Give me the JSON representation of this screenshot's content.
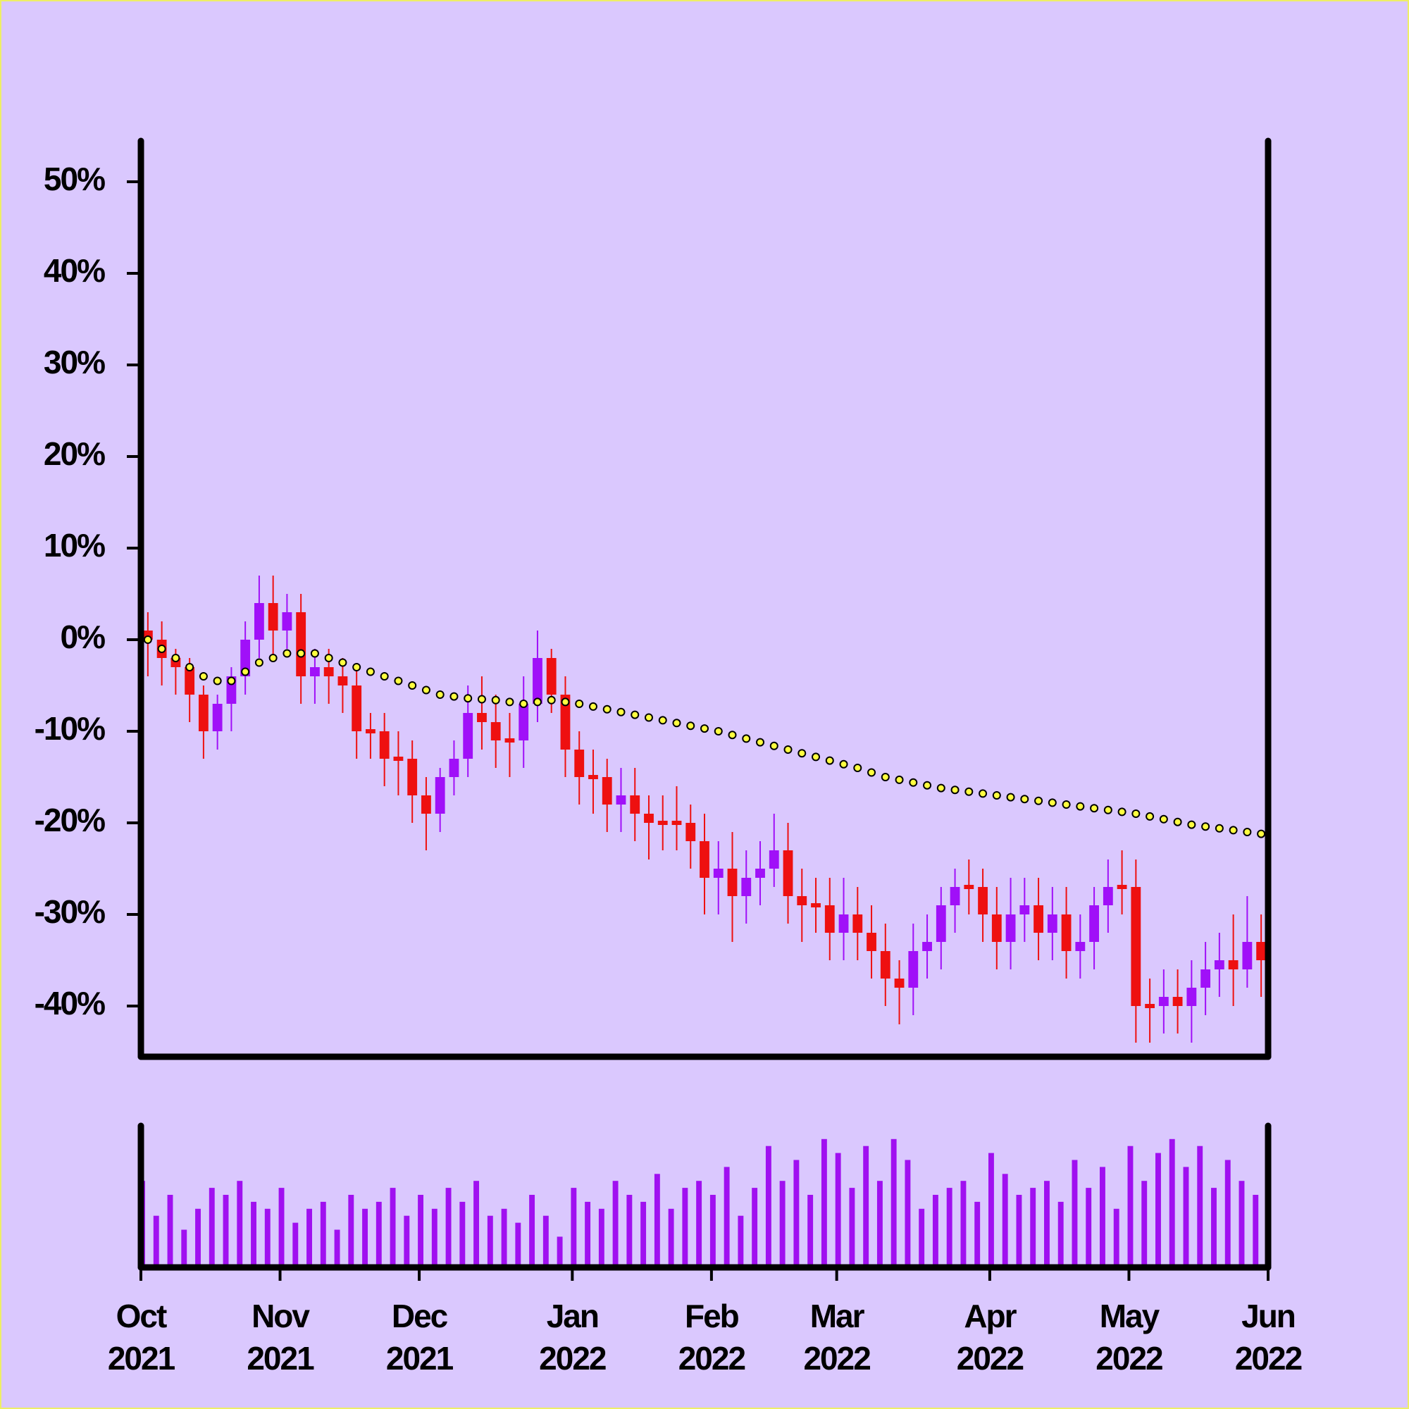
{
  "chart_data": {
    "type": "candlestick",
    "categories": [
      "Oct 2021",
      null,
      null,
      null,
      null,
      null,
      null,
      null,
      null,
      null,
      "Nov 2021",
      null,
      null,
      null,
      null,
      null,
      null,
      null,
      null,
      null,
      "Dec 2021",
      null,
      null,
      null,
      null,
      null,
      null,
      null,
      null,
      null,
      null,
      "Jan 2022",
      null,
      null,
      null,
      null,
      null,
      null,
      null,
      null,
      null,
      "Feb 2022",
      null,
      null,
      null,
      null,
      null,
      null,
      null,
      null,
      "Mar 2022",
      null,
      null,
      null,
      null,
      null,
      null,
      null,
      null,
      null,
      null,
      "Apr 2022",
      null,
      null,
      null,
      null,
      null,
      null,
      null,
      null,
      null,
      "May 2022",
      null,
      null,
      null,
      null,
      null,
      null,
      null,
      null,
      null,
      "Jun 2022"
    ],
    "open": [
      1,
      0,
      -2,
      -3,
      -6,
      -10,
      -7,
      -4,
      0,
      4,
      1,
      3,
      -4,
      -3,
      -4,
      -5,
      -10,
      -10,
      -13,
      -13,
      -17,
      -19,
      -15,
      -13,
      -8,
      -9,
      -11,
      -11,
      -7,
      -2,
      -6,
      -12,
      -15,
      -15,
      -18,
      -17,
      -19,
      -20,
      -20,
      -20,
      -22,
      -26,
      -25,
      -28,
      -26,
      -25,
      -23,
      -28,
      -29,
      -29,
      -32,
      -30,
      -32,
      -34,
      -37,
      -38,
      -34,
      -33,
      -29,
      -27,
      -27,
      -30,
      -33,
      -30,
      -29,
      -32,
      -30,
      -34,
      -33,
      -29,
      -27,
      -27,
      -40,
      -40,
      -39,
      -40,
      -38,
      -36,
      -35,
      -36,
      -33,
      null
    ],
    "high": [
      3,
      2,
      -1,
      -2,
      -5,
      -6,
      -3,
      2,
      7,
      7,
      5,
      5,
      -1,
      -1,
      -2,
      -3,
      -8,
      -8,
      -10,
      -11,
      -15,
      -14,
      -11,
      -5,
      -4,
      -6,
      -8,
      -4,
      1,
      -1,
      -4,
      -10,
      -12,
      -13,
      -14,
      -14,
      -17,
      -17,
      -16,
      -18,
      -19,
      -22,
      -21,
      -23,
      -22,
      -19,
      -20,
      -25,
      -26,
      -26,
      -26,
      -27,
      -29,
      -31,
      -35,
      -31,
      -30,
      -27,
      -25,
      -24,
      -25,
      -27,
      -26,
      -26,
      -26,
      -27,
      -27,
      -30,
      -27,
      -24,
      -23,
      -24,
      -37,
      -36,
      -36,
      -35,
      -33,
      -32,
      -30,
      -28,
      -30,
      null
    ],
    "low": [
      -4,
      -5,
      -6,
      -9,
      -13,
      -12,
      -10,
      -6,
      -2,
      -2,
      -1,
      -7,
      -7,
      -7,
      -8,
      -13,
      -13,
      -16,
      -17,
      -20,
      -23,
      -21,
      -17,
      -15,
      -12,
      -14,
      -15,
      -14,
      -9,
      -8,
      -15,
      -18,
      -19,
      -21,
      -21,
      -22,
      -24,
      -23,
      -23,
      -25,
      -30,
      -30,
      -33,
      -31,
      -29,
      -27,
      -31,
      -33,
      -32,
      -35,
      -35,
      -35,
      -37,
      -40,
      -42,
      -41,
      -37,
      -36,
      -32,
      -30,
      -33,
      -36,
      -36,
      -33,
      -35,
      -35,
      -37,
      -37,
      -36,
      -32,
      -30,
      -44,
      -44,
      -43,
      -43,
      -44,
      -41,
      -39,
      -40,
      -38,
      -39,
      null
    ],
    "close": [
      0,
      -2,
      -3,
      -6,
      -10,
      -7,
      -4,
      0,
      4,
      1,
      3,
      -4,
      -3,
      -4,
      -5,
      -10,
      -10,
      -13,
      -13,
      -17,
      -19,
      -15,
      -13,
      -8,
      -9,
      -11,
      -11,
      -7,
      -2,
      -6,
      -12,
      -15,
      -15,
      -18,
      -17,
      -19,
      -20,
      -20,
      -20,
      -22,
      -26,
      -25,
      -28,
      -26,
      -25,
      -23,
      -28,
      -29,
      -29,
      -32,
      -30,
      -32,
      -34,
      -37,
      -38,
      -34,
      -33,
      -29,
      -27,
      -27,
      -30,
      -33,
      -30,
      -29,
      -32,
      -30,
      -34,
      -33,
      -29,
      -27,
      -27,
      -40,
      -40,
      -39,
      -40,
      -38,
      -36,
      -35,
      -36,
      -33,
      -35,
      null
    ],
    "up_color": "#a010f8",
    "down_color": "#ee1010",
    "moving_average": {
      "color": "#ffff40",
      "values": [
        0,
        -1,
        -2,
        -3,
        -4,
        -4.5,
        -4.5,
        -3.5,
        -2.5,
        -2,
        -1.5,
        -1.5,
        -1.5,
        -2,
        -2.5,
        -3,
        -3.5,
        -4,
        -4.5,
        -5,
        -5.5,
        -6,
        -6.2,
        -6.4,
        -6.5,
        -6.6,
        -6.8,
        -7,
        -6.8,
        -6.6,
        -6.8,
        -7,
        -7.3,
        -7.6,
        -7.9,
        -8.2,
        -8.5,
        -8.8,
        -9.1,
        -9.4,
        -9.7,
        -10,
        -10.4,
        -10.8,
        -11.2,
        -11.6,
        -12,
        -12.4,
        -12.8,
        -13.2,
        -13.6,
        -14,
        -14.5,
        -15,
        -15.3,
        -15.6,
        -15.9,
        -16.2,
        -16.4,
        -16.6,
        -16.8,
        -17,
        -17.2,
        -17.4,
        -17.6,
        -17.8,
        -18,
        -18.2,
        -18.4,
        -18.6,
        -18.8,
        -19,
        -19.3,
        -19.6,
        -19.9,
        -20.2,
        -20.4,
        -20.6,
        -20.8,
        -21,
        -21.2,
        null
      ]
    },
    "volume": {
      "color": "#a010f0",
      "ylim": [
        0,
        100
      ],
      "values": [
        60,
        35,
        50,
        25,
        40,
        55,
        50,
        60,
        45,
        40,
        55,
        30,
        40,
        45,
        25,
        50,
        40,
        45,
        55,
        35,
        50,
        40,
        55,
        45,
        60,
        35,
        40,
        30,
        50,
        35,
        20,
        55,
        45,
        40,
        60,
        50,
        45,
        65,
        40,
        55,
        60,
        50,
        70,
        35,
        55,
        85,
        60,
        75,
        50,
        90,
        80,
        55,
        85,
        60,
        90,
        75,
        40,
        50,
        55,
        60,
        45,
        80,
        65,
        50,
        55,
        60,
        45,
        75,
        55,
        70,
        40,
        85,
        60,
        80,
        90,
        70,
        85,
        55,
        75,
        60,
        50,
        null
      ]
    },
    "ylim": [
      -45.5,
      54.5
    ],
    "yticks": [
      {
        "value": -40,
        "label": "-40%"
      },
      {
        "value": -30,
        "label": "-30%"
      },
      {
        "value": -20,
        "label": "-20%"
      },
      {
        "value": -10,
        "label": "-10%"
      },
      {
        "value": 0,
        "label": "0%"
      },
      {
        "value": 10,
        "label": "10%"
      },
      {
        "value": 20,
        "label": "20%"
      },
      {
        "value": 30,
        "label": "30%"
      },
      {
        "value": 40,
        "label": "40%"
      },
      {
        "value": 50,
        "label": "50%"
      }
    ]
  }
}
